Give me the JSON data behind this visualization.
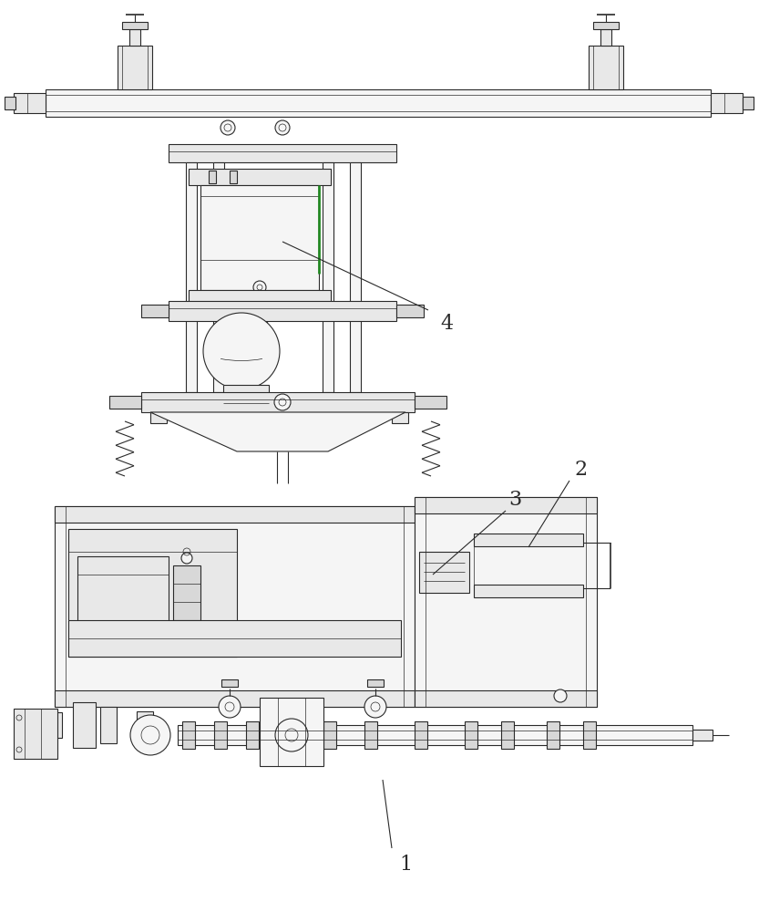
{
  "bg_color": "#ffffff",
  "lc": "#2a2a2a",
  "fc_light": "#f5f5f5",
  "fc_mid": "#e8e8e8",
  "fc_dark": "#d8d8d8",
  "lw": 0.8,
  "tlw": 0.5,
  "thk": 1.2,
  "label_1": "1",
  "label_2": "2",
  "label_3": "3",
  "label_4": "4",
  "font_size": 16,
  "fig_width": 8.33,
  "fig_height": 10.0
}
